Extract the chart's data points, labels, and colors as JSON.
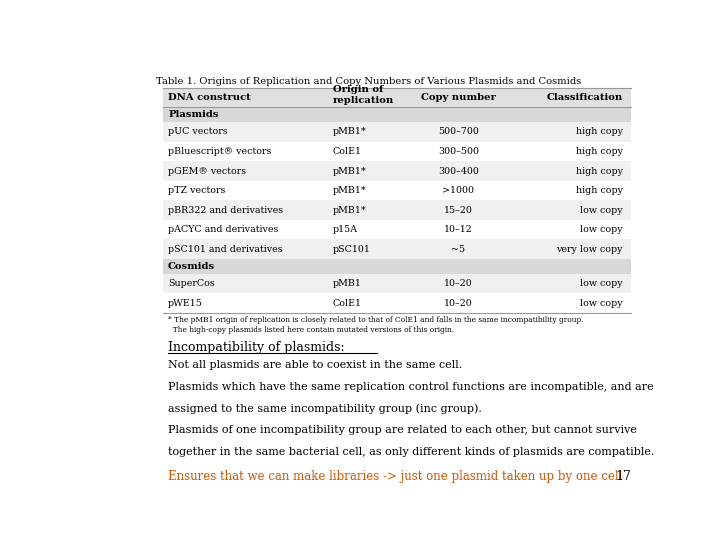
{
  "title": "Table 1. Origins of Replication and Copy Numbers of Various Plasmids and Cosmids",
  "table_headers": [
    "DNA construct",
    "Origin of\nreplication",
    "Copy number",
    "Classification"
  ],
  "section_plasmids": "Plasmids",
  "section_cosmids": "Cosmids",
  "rows_plasmids": [
    [
      "pUC vectors",
      "pMB1*",
      "500–700",
      "high copy"
    ],
    [
      "pBluescript® vectors",
      "ColE1",
      "300–500",
      "high copy"
    ],
    [
      "pGEM® vectors",
      "pMB1*",
      "300–400",
      "high copy"
    ],
    [
      "pTZ vectors",
      "pMB1*",
      ">1000",
      "high copy"
    ],
    [
      "pBR322 and derivatives",
      "pMB1*",
      "15–20",
      "low copy"
    ],
    [
      "pACYC and derivatives",
      "p15A",
      "10–12",
      "low copy"
    ],
    [
      "pSC101 and derivatives",
      "pSC101",
      "~5",
      "very low copy"
    ]
  ],
  "rows_cosmids": [
    [
      "SuperCos",
      "pMB1",
      "10–20",
      "low copy"
    ],
    [
      "pWE15",
      "ColE1",
      "10–20",
      "low copy"
    ]
  ],
  "footnote_line1": "* The pMB1 origin of replication is closely related to that of ColE1 and falls in the same incompatibility group.",
  "footnote_line2": "  The high-copy plasmids listed here contain mutated versions of this origin.",
  "heading": "Incompatibility of plasmids:",
  "body_text": [
    "Not all plasmids are able to coexist in the same cell.",
    "Plasmids which have the same replication control functions are incompatible, and are",
    "assigned to the same incompatibility group (inc group).",
    "Plasmids of one incompatibility group are related to each other, but cannot survive",
    "together in the same bacterial cell, as only different kinds of plasmids are compatible."
  ],
  "highlight_text": "Ensures that we can make libraries -> just one plasmid taken up by one cell",
  "page_number": "17",
  "bg_color": "#ffffff",
  "highlight_color": "#cc5500",
  "text_color": "#000000",
  "header_bg": "#e0e0e0",
  "section_bg": "#d8d8d8",
  "row_bg_odd": "#f0f0f0",
  "row_bg_even": "#ffffff"
}
